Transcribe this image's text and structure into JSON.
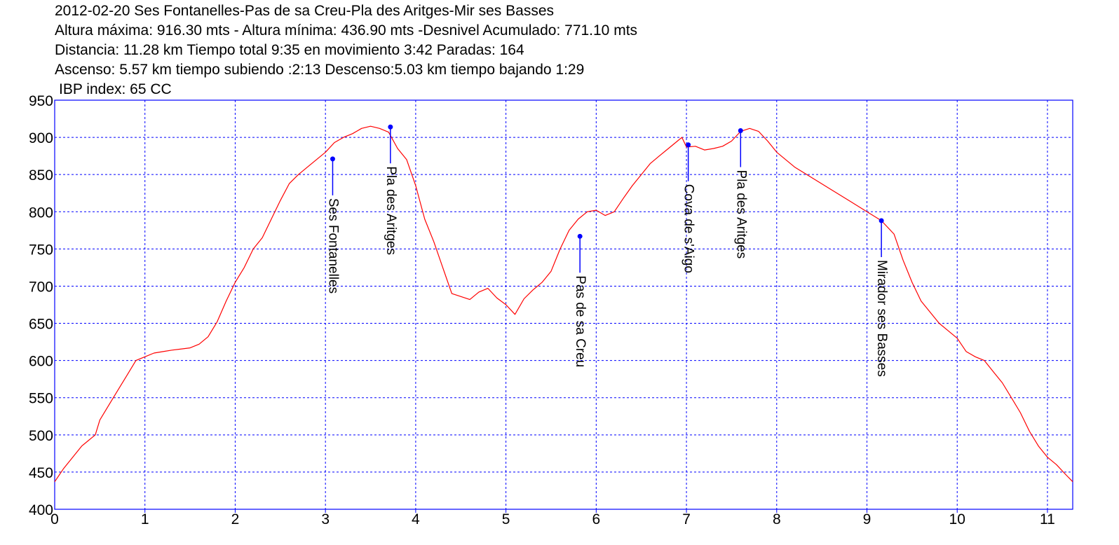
{
  "header": {
    "title": "2012-02-20 Ses Fontanelles-Pas de sa Creu-Pla des Aritges-Mir ses Basses",
    "line2": "Altura máxima: 916.30 mts - Altura mínima: 436.90 mts -Desnivel Acumulado: 771.10 mts",
    "line3": "Distancia: 11.28 km  Tiempo total 9:35  en movimiento 3:42 Paradas: 164",
    "line4": "Ascenso: 5.57 km  tiempo subiendo :2:13  Descenso:5.03 km tiempo bajando 1:29",
    "line5": "IBP index: 65 CC"
  },
  "chart_data": {
    "type": "line",
    "xlim": [
      0,
      11.28
    ],
    "ylim": [
      400,
      950
    ],
    "x_ticks": [
      "0",
      "1",
      "2",
      "3",
      "4",
      "5",
      "6",
      "7",
      "8",
      "9",
      "10",
      "11"
    ],
    "y_ticks": [
      "400",
      "450",
      "500",
      "550",
      "600",
      "650",
      "700",
      "750",
      "800",
      "850",
      "900",
      "950"
    ],
    "grid": true,
    "line_color": "#ff0000",
    "grid_color": "#0000ff",
    "frame_color": "#0000ff",
    "marker_color": "#0000ff",
    "series": [
      {
        "x": [
          0,
          0.1,
          0.2,
          0.3,
          0.45,
          0.5,
          0.6,
          0.7,
          0.8,
          0.9,
          1.0,
          1.1,
          1.2,
          1.3,
          1.5,
          1.6,
          1.7,
          1.8,
          1.9,
          2.0,
          2.1,
          2.2,
          2.3,
          2.4,
          2.5,
          2.6,
          2.7,
          2.8,
          2.9,
          3.0,
          3.1,
          3.2,
          3.3,
          3.4,
          3.5,
          3.6,
          3.7,
          3.8,
          3.9,
          4.0,
          4.1,
          4.2,
          4.3,
          4.4,
          4.5,
          4.6,
          4.7,
          4.8,
          4.9,
          5.0,
          5.1,
          5.2,
          5.3,
          5.4,
          5.5,
          5.6,
          5.7,
          5.8,
          5.9,
          6.0,
          6.1,
          6.2,
          6.3,
          6.4,
          6.5,
          6.6,
          6.7,
          6.8,
          6.9,
          6.95,
          7.0,
          7.1,
          7.2,
          7.3,
          7.4,
          7.5,
          7.6,
          7.7,
          7.8,
          7.9,
          8.0,
          8.2,
          8.4,
          8.6,
          8.8,
          9.0,
          9.16,
          9.3,
          9.4,
          9.5,
          9.6,
          9.7,
          9.8,
          9.9,
          10.0,
          10.1,
          10.2,
          10.3,
          10.4,
          10.5,
          10.6,
          10.7,
          10.8,
          10.9,
          11.0,
          11.1,
          11.2,
          11.28
        ],
        "y": [
          437,
          455,
          470,
          485,
          500,
          520,
          540,
          560,
          580,
          600,
          605,
          610,
          612,
          614,
          617,
          622,
          632,
          652,
          680,
          705,
          725,
          750,
          765,
          790,
          815,
          838,
          850,
          860,
          870,
          880,
          893,
          900,
          905,
          912,
          915,
          912,
          907,
          885,
          870,
          835,
          790,
          760,
          725,
          690,
          686,
          682,
          692,
          697,
          684,
          675,
          662,
          683,
          695,
          705,
          720,
          750,
          775,
          790,
          800,
          802,
          795,
          800,
          818,
          835,
          850,
          865,
          875,
          885,
          895,
          900,
          887,
          888,
          883,
          885,
          888,
          895,
          908,
          912,
          908,
          895,
          880,
          860,
          845,
          830,
          815,
          800,
          788,
          770,
          735,
          705,
          680,
          665,
          650,
          640,
          630,
          612,
          605,
          600,
          585,
          570,
          550,
          530,
          505,
          485,
          470,
          460,
          447,
          437
        ]
      }
    ],
    "waypoints": [
      {
        "name": "Ses Fontanelles",
        "x": 3.08,
        "y": 871
      },
      {
        "name": "Pla des Aritges",
        "x": 3.72,
        "y": 914
      },
      {
        "name": "Pas de sa Creu",
        "x": 5.82,
        "y": 767
      },
      {
        "name": "Cova de s'Aigo",
        "x": 7.02,
        "y": 890
      },
      {
        "name": "Pla des Aritges",
        "x": 7.6,
        "y": 909
      },
      {
        "name": "Mirador ses Basses",
        "x": 9.16,
        "y": 788
      }
    ]
  }
}
